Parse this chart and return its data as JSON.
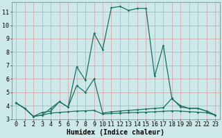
{
  "title": "",
  "xlabel": "Humidex (Indice chaleur)",
  "ylabel": "",
  "bg_color": "#cce8e8",
  "grid_color": "#d4a0a0",
  "line_color": "#1a7060",
  "marker": "D",
  "marker_size": 1.8,
  "line_width": 0.9,
  "ylim": [
    3.0,
    11.7
  ],
  "xlim": [
    -0.5,
    23.5
  ],
  "yticks": [
    3,
    4,
    5,
    6,
    7,
    8,
    9,
    10,
    11
  ],
  "xticks": [
    0,
    1,
    2,
    3,
    4,
    5,
    6,
    7,
    8,
    9,
    10,
    11,
    12,
    13,
    14,
    15,
    16,
    17,
    18,
    19,
    20,
    21,
    22,
    23
  ],
  "line1_x": [
    0,
    1,
    2,
    3,
    4,
    5,
    6,
    7,
    8,
    9,
    10,
    11,
    12,
    13,
    14,
    15,
    16,
    17,
    18,
    19,
    20,
    21,
    22,
    23
  ],
  "line1_y": [
    4.2,
    3.8,
    3.2,
    3.3,
    3.8,
    4.3,
    3.9,
    6.9,
    5.9,
    9.4,
    8.2,
    11.3,
    11.4,
    11.1,
    11.25,
    11.25,
    6.2,
    8.5,
    4.5,
    4.0,
    3.8,
    3.8,
    3.6,
    3.3
  ],
  "line2_x": [
    0,
    1,
    2,
    3,
    4,
    5,
    6,
    7,
    8,
    9,
    10,
    11,
    12,
    13,
    14,
    15,
    16,
    17,
    18,
    19,
    20,
    21,
    22,
    23
  ],
  "line2_y": [
    4.2,
    3.8,
    3.2,
    3.5,
    3.6,
    4.3,
    3.9,
    5.5,
    5.0,
    6.0,
    3.45,
    3.55,
    3.6,
    3.65,
    3.7,
    3.75,
    3.8,
    3.85,
    4.55,
    3.9,
    3.8,
    3.8,
    3.6,
    3.3
  ],
  "line3_x": [
    0,
    1,
    2,
    3,
    4,
    5,
    6,
    7,
    8,
    9,
    10,
    11,
    12,
    13,
    14,
    15,
    16,
    17,
    18,
    19,
    20,
    21,
    22,
    23
  ],
  "line3_y": [
    4.2,
    3.8,
    3.2,
    3.3,
    3.45,
    3.5,
    3.55,
    3.6,
    3.62,
    3.65,
    3.38,
    3.42,
    3.45,
    3.48,
    3.5,
    3.52,
    3.55,
    3.58,
    3.62,
    3.6,
    3.55,
    3.52,
    3.48,
    3.3
  ],
  "tick_fontsize": 6.0,
  "label_fontsize": 7.0
}
